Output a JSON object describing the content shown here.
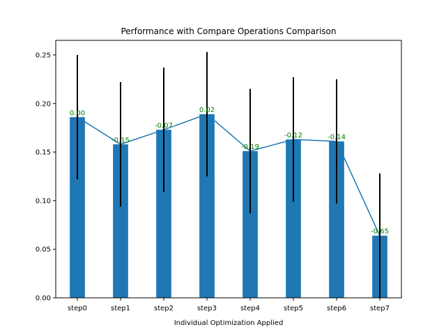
{
  "chart_data": {
    "type": "bar",
    "title": "Performance with Compare Operations Comparison",
    "xlabel": "Individual Optimization Applied",
    "ylabel": "",
    "categories": [
      "step0",
      "step1",
      "step2",
      "step3",
      "step4",
      "step5",
      "step6",
      "step7"
    ],
    "values": [
      0.186,
      0.158,
      0.173,
      0.189,
      0.151,
      0.163,
      0.161,
      0.064
    ],
    "error": [
      0.064,
      0.064,
      0.064,
      0.064,
      0.064,
      0.064,
      0.064,
      0.064
    ],
    "labels": [
      "0.00",
      "-0.15",
      "-0.07",
      "0.02",
      "-0.19",
      "-0.12",
      "-0.14",
      "-0.65"
    ],
    "ylim": [
      0,
      0.265
    ],
    "yticks": [
      0.0,
      0.05,
      0.1,
      0.15,
      0.2,
      0.25
    ],
    "ytick_labels": [
      "0.00",
      "0.05",
      "0.10",
      "0.15",
      "0.20",
      "0.25"
    ],
    "grid": false,
    "overlay_line": true,
    "colors": {
      "bar": "#1f77b4",
      "line": "#1f77b4",
      "error": "#000000",
      "label": "#008000"
    }
  }
}
